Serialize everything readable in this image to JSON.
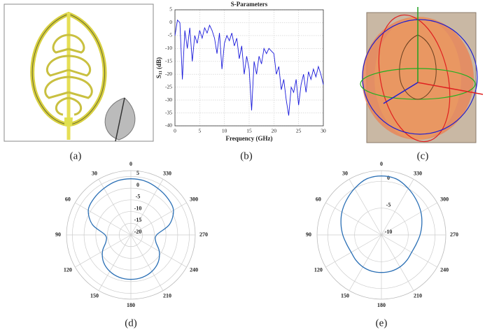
{
  "panel_labels": [
    "(a)",
    "(b)",
    "(c)",
    "(d)",
    "(e)"
  ],
  "chart_data": [
    {
      "type": "line",
      "title": "S-Parameters",
      "xlabel": "Frequency (GHz)",
      "ylabel": {
        "symbol": "S",
        "subscript": "11",
        "unit": "(dB)"
      },
      "x": [
        0,
        0.5,
        1,
        1.5,
        2,
        2.5,
        3,
        3.5,
        4,
        4.5,
        5,
        5.5,
        6,
        6.5,
        7,
        7.5,
        8,
        8.5,
        9,
        9.5,
        10,
        10.5,
        11,
        11.5,
        12,
        12.5,
        13,
        13.5,
        14,
        14.5,
        15,
        15.5,
        16,
        16.5,
        17,
        17.5,
        18,
        18.5,
        19,
        19.5,
        20,
        20.5,
        21,
        21.5,
        22,
        22.5,
        23,
        23.5,
        24,
        24.5,
        25,
        25.5,
        26,
        26.5,
        27,
        27.5,
        28,
        28.5,
        29,
        29.5,
        30
      ],
      "series": [
        {
          "color": "#1a1adb",
          "values": [
            -5,
            1,
            0,
            -22,
            -3,
            -10,
            -2,
            -15,
            -5,
            -8,
            -3,
            -6,
            -2,
            -4,
            -1,
            -3,
            -6,
            -12,
            -4,
            -18,
            -8,
            -5,
            -7,
            -4,
            -9,
            -6,
            -14,
            -9,
            -20,
            -13,
            -18,
            -34,
            -15,
            -20,
            -13,
            -16,
            -10,
            -12,
            -10,
            -11,
            -12,
            -20,
            -17,
            -26,
            -22,
            -30,
            -36,
            -25,
            -27,
            -22,
            -32,
            -24,
            -20,
            -27,
            -19,
            -22,
            -18,
            -21,
            -17,
            -20,
            -24
          ]
        }
      ],
      "xlim": [
        0,
        30
      ],
      "xticks": [
        0,
        5,
        10,
        15,
        20,
        25,
        30
      ],
      "ylim": [
        -40,
        5
      ],
      "yticks": [
        5,
        0,
        -5,
        -10,
        -15,
        -20,
        -25,
        -30,
        -35,
        -40
      ],
      "grid": true
    },
    {
      "type": "polar",
      "color": "#2a6fb5",
      "theta": [
        0,
        15,
        30,
        45,
        60,
        75,
        90,
        105,
        120,
        135,
        150,
        165,
        180,
        195,
        210,
        225,
        240,
        255,
        270,
        285,
        300,
        315,
        330,
        345
      ],
      "values": [
        4,
        3.8,
        3,
        2.2,
        1,
        -3,
        -9,
        -9,
        -6,
        -3.5,
        -2,
        -1.2,
        -1,
        -1.2,
        -2,
        -3.5,
        -6,
        -9,
        -9,
        -3,
        1,
        2.2,
        3,
        3.8
      ],
      "thetaticks": [
        0,
        30,
        60,
        90,
        120,
        150,
        180,
        210,
        240,
        270,
        300,
        330
      ],
      "rlim": [
        -20,
        7.5
      ],
      "rticks": [
        5,
        0,
        -5,
        -10,
        -15,
        -20
      ]
    },
    {
      "type": "polar",
      "color": "#2a6fb5",
      "theta": [
        0,
        15,
        30,
        45,
        60,
        75,
        90,
        105,
        120,
        135,
        150,
        165,
        180,
        195,
        210,
        225,
        240,
        255,
        270,
        285,
        300,
        315,
        330,
        345
      ],
      "values": [
        1,
        0.8,
        0,
        -0.8,
        -1.5,
        -2.2,
        -2.8,
        -3.3,
        -3.5,
        -3.3,
        -3.1,
        -3,
        -3,
        -3,
        -3.1,
        -3.3,
        -3.5,
        -3.3,
        -2.8,
        -2.2,
        -1.5,
        -0.8,
        0,
        0.8
      ],
      "thetaticks": [
        0,
        30,
        60,
        90,
        120,
        150,
        180,
        210,
        240,
        270,
        300,
        330
      ],
      "rlim": [
        -10,
        2
      ],
      "rticks": [
        0,
        -5,
        -10
      ]
    }
  ]
}
